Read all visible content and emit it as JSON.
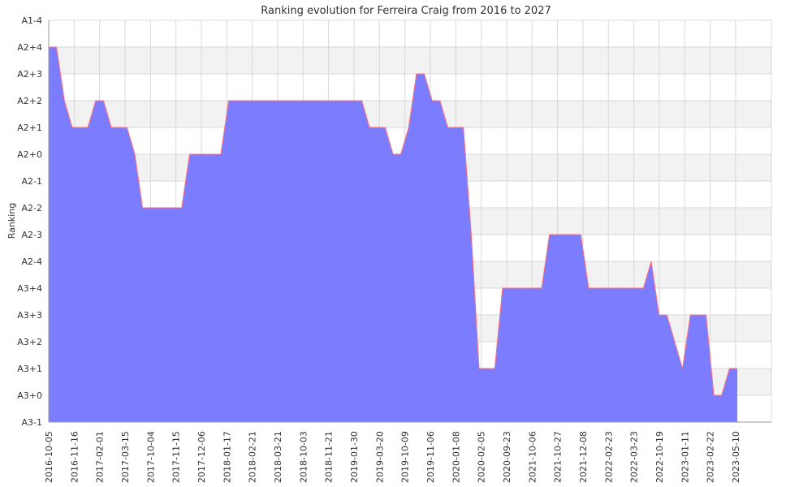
{
  "chart_data": {
    "type": "area",
    "title": "Ranking evolution for Ferreira Craig from 2016 to 2027",
    "xlabel": "",
    "ylabel": "Ranking",
    "y_categories": [
      "A3-1",
      "A3+0",
      "A3+1",
      "A3+2",
      "A3+3",
      "A3+4",
      "A2-4",
      "A2-3",
      "A2-2",
      "A2-1",
      "A2+0",
      "A2+1",
      "A2+2",
      "A2+3",
      "A2+4",
      "A1-4"
    ],
    "x_tick_labels": [
      "2016-10-05",
      "2016-11-16",
      "2017-02-01",
      "2017-03-15",
      "2017-10-04",
      "2017-11-15",
      "2017-12-06",
      "2018-01-17",
      "2018-02-21",
      "2018-03-21",
      "2018-10-03",
      "2018-11-21",
      "2019-01-30",
      "2019-03-20",
      "2019-10-09",
      "2019-11-06",
      "2020-01-08",
      "2020-02-05",
      "2020-09-23",
      "2021-10-06",
      "2021-10-27",
      "2021-12-08",
      "2022-02-23",
      "2022-03-23",
      "2022-10-19",
      "2023-01-11",
      "2023-02-22",
      "2023-05-10"
    ],
    "series": [
      {
        "values": [
          "A2+4",
          "A2+4",
          "A2+2",
          "A2+1",
          "A2+1",
          "A2+1",
          "A2+2",
          "A2+2",
          "A2+1",
          "A2+1",
          "A2+1",
          "A2+0",
          "A2-2",
          "A2-2",
          "A2-2",
          "A2-2",
          "A2-2",
          "A2-2",
          "A2+0",
          "A2+0",
          "A2+0",
          "A2+0",
          "A2+0",
          "A2+2",
          "A2+2",
          "A2+2",
          "A2+2",
          "A2+2",
          "A2+2",
          "A2+2",
          "A2+2",
          "A2+2",
          "A2+2",
          "A2+2",
          "A2+2",
          "A2+2",
          "A2+2",
          "A2+2",
          "A2+2",
          "A2+2",
          "A2+2",
          "A2+1",
          "A2+1",
          "A2+1",
          "A2+0",
          "A2+0",
          "A2+1",
          "A2+3",
          "A2+3",
          "A2+2",
          "A2+2",
          "A2+1",
          "A2+1",
          "A2+1",
          "A2-3",
          "A3+1",
          "A3+1",
          "A3+1",
          "A3+4",
          "A3+4",
          "A3+4",
          "A3+4",
          "A3+4",
          "A3+4",
          "A2-3",
          "A2-3",
          "A2-3",
          "A2-3",
          "A2-3",
          "A3+4",
          "A3+4",
          "A3+4",
          "A3+4",
          "A3+4",
          "A3+4",
          "A3+4",
          "A3+4",
          "A2-4",
          "A3+3",
          "A3+3",
          "A3+2",
          "A3+1",
          "A3+3",
          "A3+3",
          "A3+3",
          "A3+0",
          "A3+0",
          "A3+1",
          "A3+1"
        ]
      }
    ],
    "ylim": [
      "A3-1",
      "A1-4"
    ],
    "grid": true,
    "colors": {
      "fill": "#7c7cff",
      "line": "#ff6f7a",
      "band": "#f2f2f2",
      "grid": "#d8d8d8"
    }
  }
}
